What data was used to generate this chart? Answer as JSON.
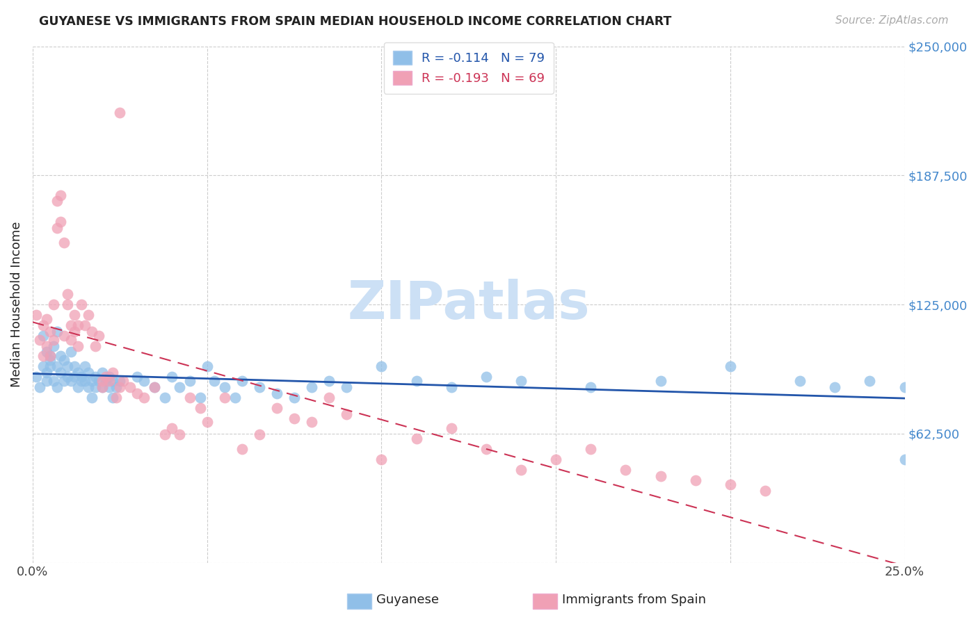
{
  "title": "GUYANESE VS IMMIGRANTS FROM SPAIN MEDIAN HOUSEHOLD INCOME CORRELATION CHART",
  "source": "Source: ZipAtlas.com",
  "ylabel": "Median Household Income",
  "xlim": [
    0.0,
    0.25
  ],
  "ylim": [
    0,
    250000
  ],
  "yticks": [
    0,
    62500,
    125000,
    187500,
    250000
  ],
  "ytick_labels": [
    "",
    "$62,500",
    "$125,000",
    "$187,500",
    "$250,000"
  ],
  "guyanese_R": -0.114,
  "guyanese_N": 79,
  "spain_R": -0.193,
  "spain_N": 69,
  "blue_color": "#90bfe8",
  "pink_color": "#f0a0b5",
  "blue_line_color": "#2255aa",
  "pink_line_color": "#cc3355",
  "title_color": "#222222",
  "ytick_color": "#4488cc",
  "xtick_color": "#444444",
  "grid_color": "#cccccc",
  "watermark_color": "#cce0f5",
  "source_color": "#aaaaaa",
  "legend_label_blue": "Guyanese",
  "legend_label_pink": "Immigrants from Spain",
  "background_color": "#ffffff",
  "guyanese_x": [
    0.001,
    0.002,
    0.003,
    0.003,
    0.004,
    0.004,
    0.004,
    0.005,
    0.005,
    0.005,
    0.006,
    0.006,
    0.007,
    0.007,
    0.007,
    0.008,
    0.008,
    0.009,
    0.009,
    0.01,
    0.01,
    0.011,
    0.011,
    0.012,
    0.012,
    0.013,
    0.013,
    0.014,
    0.014,
    0.015,
    0.015,
    0.016,
    0.016,
    0.017,
    0.017,
    0.018,
    0.018,
    0.019,
    0.02,
    0.02,
    0.021,
    0.022,
    0.022,
    0.023,
    0.023,
    0.024,
    0.025,
    0.03,
    0.032,
    0.035,
    0.038,
    0.04,
    0.042,
    0.045,
    0.048,
    0.05,
    0.052,
    0.055,
    0.058,
    0.06,
    0.065,
    0.07,
    0.075,
    0.08,
    0.085,
    0.09,
    0.1,
    0.11,
    0.12,
    0.13,
    0.14,
    0.16,
    0.18,
    0.2,
    0.22,
    0.23,
    0.24,
    0.25,
    0.25
  ],
  "guyanese_y": [
    90000,
    85000,
    95000,
    110000,
    88000,
    92000,
    102000,
    100000,
    95000,
    98000,
    105000,
    88000,
    112000,
    95000,
    85000,
    100000,
    92000,
    98000,
    88000,
    95000,
    90000,
    102000,
    88000,
    95000,
    90000,
    92000,
    85000,
    88000,
    90000,
    95000,
    88000,
    85000,
    92000,
    88000,
    80000,
    90000,
    85000,
    88000,
    92000,
    85000,
    88000,
    90000,
    85000,
    88000,
    80000,
    85000,
    88000,
    90000,
    88000,
    85000,
    80000,
    90000,
    85000,
    88000,
    80000,
    95000,
    88000,
    85000,
    80000,
    88000,
    85000,
    82000,
    80000,
    85000,
    88000,
    85000,
    95000,
    88000,
    85000,
    90000,
    88000,
    85000,
    88000,
    95000,
    88000,
    85000,
    88000,
    85000,
    50000
  ],
  "spain_x": [
    0.001,
    0.002,
    0.003,
    0.003,
    0.004,
    0.004,
    0.005,
    0.005,
    0.006,
    0.006,
    0.007,
    0.007,
    0.008,
    0.008,
    0.009,
    0.009,
    0.01,
    0.01,
    0.011,
    0.011,
    0.012,
    0.012,
    0.013,
    0.013,
    0.014,
    0.015,
    0.016,
    0.017,
    0.018,
    0.019,
    0.02,
    0.02,
    0.021,
    0.022,
    0.023,
    0.024,
    0.025,
    0.026,
    0.028,
    0.03,
    0.032,
    0.035,
    0.038,
    0.04,
    0.042,
    0.045,
    0.048,
    0.05,
    0.055,
    0.06,
    0.065,
    0.07,
    0.075,
    0.08,
    0.085,
    0.09,
    0.1,
    0.11,
    0.12,
    0.13,
    0.14,
    0.15,
    0.16,
    0.17,
    0.18,
    0.19,
    0.2,
    0.21,
    0.025
  ],
  "spain_y": [
    120000,
    108000,
    115000,
    100000,
    118000,
    105000,
    112000,
    100000,
    125000,
    108000,
    175000,
    162000,
    178000,
    165000,
    155000,
    110000,
    130000,
    125000,
    115000,
    108000,
    120000,
    112000,
    115000,
    105000,
    125000,
    115000,
    120000,
    112000,
    105000,
    110000,
    88000,
    85000,
    90000,
    88000,
    92000,
    80000,
    85000,
    88000,
    85000,
    82000,
    80000,
    85000,
    62000,
    65000,
    62000,
    80000,
    75000,
    68000,
    80000,
    55000,
    62000,
    75000,
    70000,
    68000,
    80000,
    72000,
    50000,
    60000,
    65000,
    55000,
    45000,
    50000,
    55000,
    45000,
    42000,
    40000,
    38000,
    35000,
    218000
  ]
}
